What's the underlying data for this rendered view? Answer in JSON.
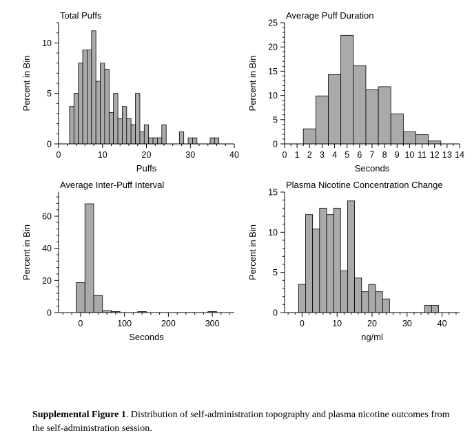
{
  "caption": {
    "label": "Supplemental Figure 1",
    "text": ". Distribution of self-administration topography and plasma nicotine outcomes from the self-administration session."
  },
  "colors": {
    "bar_fill": "#aaaaaa",
    "bar_stroke": "#000000",
    "axis": "#000000"
  },
  "chart_data": [
    {
      "type": "bar",
      "title": "Total Puffs",
      "xlabel": "Puffs",
      "ylabel": "Percent in Bin",
      "xlim": [
        0,
        40
      ],
      "ylim": [
        0,
        12
      ],
      "xticks": [
        0,
        10,
        20,
        30,
        40
      ],
      "yticks": [
        0,
        5,
        10
      ],
      "grid": false,
      "bins": [
        {
          "x0": 2.5,
          "x1": 3.5,
          "value": 3.7
        },
        {
          "x0": 3.5,
          "x1": 4.5,
          "value": 5.0
        },
        {
          "x0": 4.5,
          "x1": 5.5,
          "value": 8.0
        },
        {
          "x0": 5.5,
          "x1": 6.5,
          "value": 9.3
        },
        {
          "x0": 6.5,
          "x1": 7.5,
          "value": 9.3
        },
        {
          "x0": 7.5,
          "x1": 8.5,
          "value": 11.2
        },
        {
          "x0": 8.5,
          "x1": 9.5,
          "value": 6.2
        },
        {
          "x0": 9.5,
          "x1": 10.5,
          "value": 8.0
        },
        {
          "x0": 10.5,
          "x1": 11.5,
          "value": 7.4
        },
        {
          "x0": 11.5,
          "x1": 12.5,
          "value": 3.1
        },
        {
          "x0": 12.5,
          "x1": 13.5,
          "value": 5.0
        },
        {
          "x0": 13.5,
          "x1": 14.5,
          "value": 2.5
        },
        {
          "x0": 14.5,
          "x1": 15.5,
          "value": 3.7
        },
        {
          "x0": 15.5,
          "x1": 16.5,
          "value": 2.5
        },
        {
          "x0": 16.5,
          "x1": 17.5,
          "value": 1.9
        },
        {
          "x0": 17.5,
          "x1": 18.5,
          "value": 5.0
        },
        {
          "x0": 18.5,
          "x1": 19.5,
          "value": 1.2
        },
        {
          "x0": 19.5,
          "x1": 20.5,
          "value": 1.9
        },
        {
          "x0": 20.5,
          "x1": 21.5,
          "value": 0.6
        },
        {
          "x0": 21.5,
          "x1": 22.5,
          "value": 0.6
        },
        {
          "x0": 22.5,
          "x1": 23.5,
          "value": 0.6
        },
        {
          "x0": 23.5,
          "x1": 24.5,
          "value": 1.9
        },
        {
          "x0": 27.5,
          "x1": 28.5,
          "value": 1.2
        },
        {
          "x0": 29.5,
          "x1": 30.5,
          "value": 0.6
        },
        {
          "x0": 30.5,
          "x1": 31.5,
          "value": 0.6
        },
        {
          "x0": 34.5,
          "x1": 35.5,
          "value": 0.6
        },
        {
          "x0": 35.5,
          "x1": 36.5,
          "value": 0.6
        }
      ]
    },
    {
      "type": "bar",
      "title": "Average Puff Duration",
      "xlabel": "Seconds",
      "ylabel": "Percent in Bin",
      "xlim": [
        0,
        14
      ],
      "ylim": [
        0,
        25
      ],
      "xticks": [
        0,
        1,
        2,
        3,
        4,
        5,
        6,
        7,
        8,
        9,
        10,
        11,
        12,
        13,
        14
      ],
      "yticks": [
        0,
        5,
        10,
        15,
        20,
        25
      ],
      "grid": false,
      "bins": [
        {
          "x0": 1.5,
          "x1": 2.5,
          "value": 3.1
        },
        {
          "x0": 2.5,
          "x1": 3.5,
          "value": 9.9
        },
        {
          "x0": 3.5,
          "x1": 4.5,
          "value": 14.3
        },
        {
          "x0": 4.5,
          "x1": 5.5,
          "value": 22.4
        },
        {
          "x0": 5.5,
          "x1": 6.5,
          "value": 16.1
        },
        {
          "x0": 6.5,
          "x1": 7.5,
          "value": 11.2
        },
        {
          "x0": 7.5,
          "x1": 8.5,
          "value": 11.8
        },
        {
          "x0": 8.5,
          "x1": 9.5,
          "value": 6.2
        },
        {
          "x0": 9.5,
          "x1": 10.5,
          "value": 2.5
        },
        {
          "x0": 10.5,
          "x1": 11.5,
          "value": 1.9
        },
        {
          "x0": 11.5,
          "x1": 12.5,
          "value": 0.6
        }
      ]
    },
    {
      "type": "bar",
      "title": "Average Inter-Puff Interval",
      "xlabel": "Seconds",
      "ylabel": "Percent in Bin",
      "xlim": [
        -50,
        350
      ],
      "ylim": [
        0,
        75
      ],
      "xticks": [
        0,
        100,
        200,
        300
      ],
      "yticks": [
        0,
        20,
        40,
        60
      ],
      "grid": false,
      "bins": [
        {
          "x0": -10,
          "x1": 10,
          "value": 18.6
        },
        {
          "x0": 10,
          "x1": 30,
          "value": 67.7
        },
        {
          "x0": 30,
          "x1": 50,
          "value": 10.6
        },
        {
          "x0": 50,
          "x1": 70,
          "value": 1.2
        },
        {
          "x0": 70,
          "x1": 90,
          "value": 0.6
        },
        {
          "x0": 130,
          "x1": 150,
          "value": 0.6
        },
        {
          "x0": 290,
          "x1": 310,
          "value": 0.6
        }
      ]
    },
    {
      "type": "bar",
      "title": "Plasma Nicotine Concentration Change",
      "xlabel": "ng/ml",
      "ylabel": "Percent in Bin",
      "xlim": [
        -5,
        45
      ],
      "ylim": [
        0,
        15
      ],
      "xticks": [
        0,
        10,
        20,
        30,
        40
      ],
      "yticks": [
        0,
        5,
        10,
        15
      ],
      "grid": false,
      "bins": [
        {
          "x0": -1,
          "x1": 1,
          "value": 3.5
        },
        {
          "x0": 1,
          "x1": 3,
          "value": 12.2
        },
        {
          "x0": 3,
          "x1": 5,
          "value": 10.4
        },
        {
          "x0": 5,
          "x1": 7,
          "value": 13.0
        },
        {
          "x0": 7,
          "x1": 9,
          "value": 12.2
        },
        {
          "x0": 9,
          "x1": 11,
          "value": 13.0
        },
        {
          "x0": 11,
          "x1": 13,
          "value": 5.2
        },
        {
          "x0": 13,
          "x1": 15,
          "value": 13.9
        },
        {
          "x0": 15,
          "x1": 17,
          "value": 4.3
        },
        {
          "x0": 17,
          "x1": 19,
          "value": 2.6
        },
        {
          "x0": 19,
          "x1": 21,
          "value": 3.5
        },
        {
          "x0": 21,
          "x1": 23,
          "value": 2.6
        },
        {
          "x0": 23,
          "x1": 25,
          "value": 1.7
        },
        {
          "x0": 35,
          "x1": 37,
          "value": 0.9
        },
        {
          "x0": 37,
          "x1": 39,
          "value": 0.9
        }
      ]
    }
  ]
}
